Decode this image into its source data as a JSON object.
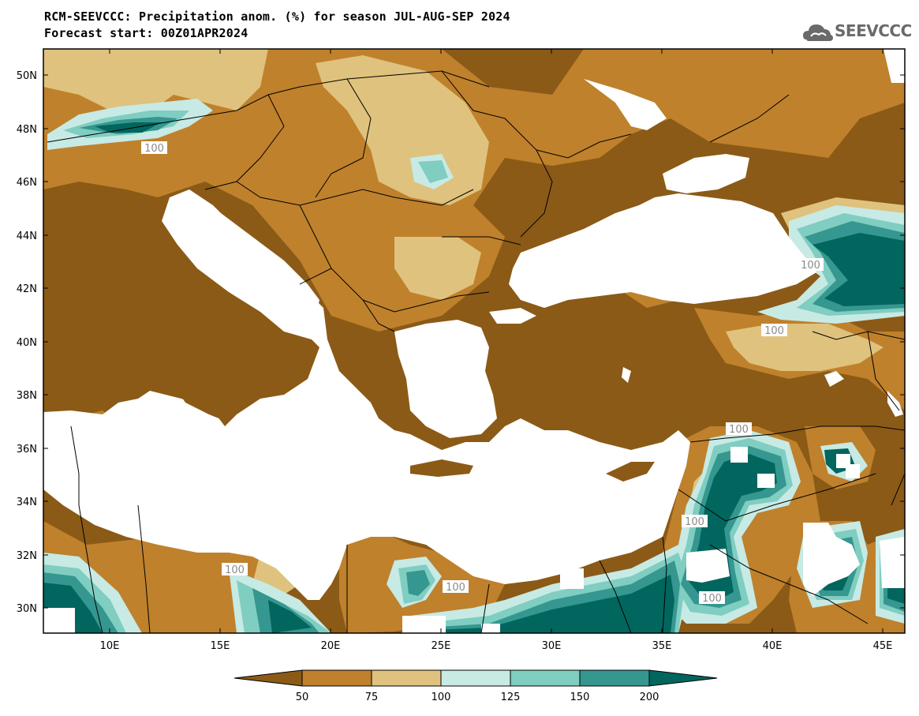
{
  "header": {
    "title_line1": "RCM-SEEVCCC: Precipitation anom. (%) for season JUL-AUG-SEP 2024",
    "title_line2": "Forecast start: 00Z01APR2024",
    "logo_text": "SEEVCCC"
  },
  "map": {
    "lat_labels": [
      "50N",
      "48N",
      "46N",
      "44N",
      "42N",
      "40N",
      "38N",
      "36N",
      "34N",
      "32N",
      "30N"
    ],
    "lon_labels": [
      "10E",
      "15E",
      "20E",
      "25E",
      "30E",
      "35E",
      "40E",
      "45E"
    ],
    "contour_labels": [
      "100",
      "100",
      "100",
      "100",
      "100",
      "100",
      "100",
      "100"
    ],
    "colors": {
      "lt50": "#8b5a17",
      "50_75": "#bf812c",
      "75_100": "#dfc27d",
      "100_125": "#c7eae5",
      "125_150": "#80cdc1",
      "150_200": "#35978f",
      "gt200": "#01665e",
      "sea": "#ffffff"
    }
  },
  "colorbar": {
    "labels": [
      "50",
      "75",
      "100",
      "125",
      "150",
      "200"
    ]
  }
}
